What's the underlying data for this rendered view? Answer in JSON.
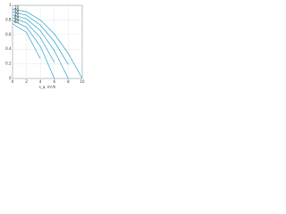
{
  "chart_data": {
    "type": "line",
    "xlabel": "s_a, m³/h",
    "x": [
      0,
      2,
      4,
      6,
      8,
      10
    ],
    "series": [
      {
        "name": "10",
        "color": "#2a9fc9",
        "values": [
          0.95,
          0.912,
          0.798,
          0.608,
          0.342,
          0
        ]
      },
      {
        "name": "20",
        "color": "#2a9fc9",
        "values": [
          0.91,
          0.865,
          0.73,
          0.506,
          0.191,
          null
        ]
      },
      {
        "name": "30",
        "color": "#2a9fc9",
        "values": [
          0.87,
          0.816,
          0.653,
          0.381,
          0,
          null
        ]
      },
      {
        "name": "40",
        "color": "#2a9fc9",
        "values": [
          0.83,
          0.762,
          0.559,
          0.221,
          null,
          null
        ]
      },
      {
        "name": "50",
        "color": "#2a9fc9",
        "values": [
          0.79,
          0.702,
          0.439,
          0,
          null,
          null
        ]
      },
      {
        "name": "60",
        "color": "#2a9fc9",
        "values": [
          0.75,
          0.63,
          0.27,
          null,
          null,
          null
        ]
      }
    ],
    "xlim": [
      0,
      10
    ],
    "xticks": [
      0,
      2,
      4,
      6,
      8,
      10
    ],
    "ylim": [
      0,
      1
    ],
    "yticks": [
      0,
      0.2,
      0.4,
      0.6,
      0.8,
      1
    ],
    "grid": true
  }
}
